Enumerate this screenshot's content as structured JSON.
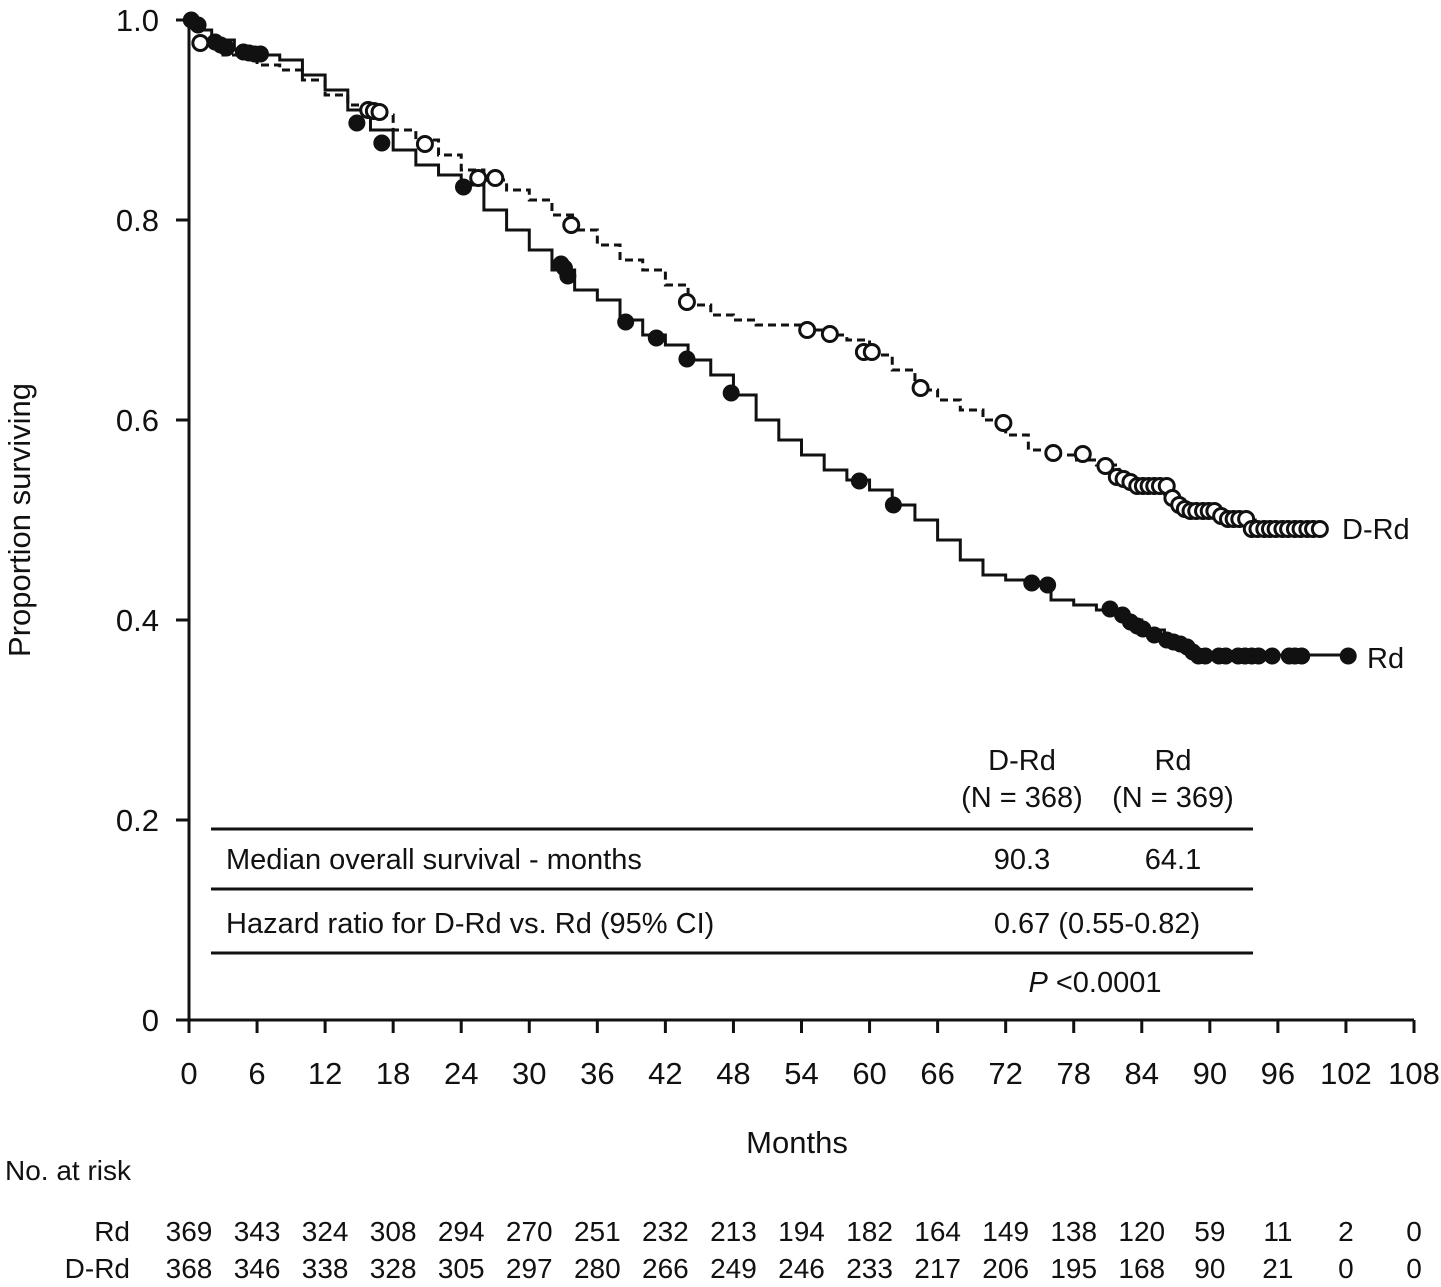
{
  "chart_data": {
    "type": "line",
    "subtype": "kaplan-meier",
    "xlabel": "Months",
    "ylabel": "Proportion surviving",
    "xlim": [
      0,
      108
    ],
    "ylim": [
      0,
      1.0
    ],
    "x_ticks": [
      0,
      6,
      12,
      18,
      24,
      30,
      36,
      42,
      48,
      54,
      60,
      66,
      72,
      78,
      84,
      90,
      96,
      102,
      108
    ],
    "y_ticks": [
      {
        "value": 0,
        "label": "0"
      },
      {
        "value": 0.2,
        "label": "0.2"
      },
      {
        "value": 0.4,
        "label": "0.4"
      },
      {
        "value": 0.6,
        "label": "0.6"
      },
      {
        "value": 0.8,
        "label": "0.8"
      },
      {
        "value": 1.0,
        "label": "1.0"
      }
    ],
    "grid": false,
    "series": [
      {
        "name": "Rd",
        "line_style": "solid",
        "marker": "filled-circle",
        "color": "#111111",
        "steps": [
          [
            0,
            1.0
          ],
          [
            1,
            0.99
          ],
          [
            2,
            0.98
          ],
          [
            4,
            0.97
          ],
          [
            6,
            0.965
          ],
          [
            8,
            0.96
          ],
          [
            10,
            0.945
          ],
          [
            12,
            0.93
          ],
          [
            14,
            0.91
          ],
          [
            16,
            0.89
          ],
          [
            18,
            0.87
          ],
          [
            20,
            0.855
          ],
          [
            22,
            0.845
          ],
          [
            24,
            0.835
          ],
          [
            26,
            0.81
          ],
          [
            28,
            0.79
          ],
          [
            30,
            0.77
          ],
          [
            32,
            0.75
          ],
          [
            34,
            0.73
          ],
          [
            36,
            0.72
          ],
          [
            38,
            0.7
          ],
          [
            40,
            0.685
          ],
          [
            42,
            0.675
          ],
          [
            44,
            0.66
          ],
          [
            46,
            0.645
          ],
          [
            48,
            0.625
          ],
          [
            50,
            0.6
          ],
          [
            52,
            0.58
          ],
          [
            54,
            0.565
          ],
          [
            56,
            0.55
          ],
          [
            58,
            0.54
          ],
          [
            60,
            0.53
          ],
          [
            62,
            0.515
          ],
          [
            64,
            0.5
          ],
          [
            66,
            0.48
          ],
          [
            68,
            0.46
          ],
          [
            70,
            0.445
          ],
          [
            72,
            0.44
          ],
          [
            74,
            0.435
          ],
          [
            76,
            0.42
          ],
          [
            78,
            0.415
          ],
          [
            80,
            0.41
          ],
          [
            82,
            0.4
          ],
          [
            84,
            0.39
          ],
          [
            86,
            0.375
          ],
          [
            88,
            0.365
          ],
          [
            102,
            0.365
          ]
        ],
        "censored": [
          [
            0.2,
            1.0
          ],
          [
            0.8,
            0.995
          ],
          [
            2.3,
            0.978
          ],
          [
            2.8,
            0.975
          ],
          [
            3.3,
            0.972
          ],
          [
            4.8,
            0.968
          ],
          [
            5.3,
            0.967
          ],
          [
            5.8,
            0.966
          ],
          [
            6.3,
            0.966
          ],
          [
            14.8,
            0.897
          ],
          [
            17.0,
            0.877
          ],
          [
            24.2,
            0.833
          ],
          [
            32.8,
            0.756
          ],
          [
            33.1,
            0.752
          ],
          [
            33.4,
            0.744
          ],
          [
            38.5,
            0.698
          ],
          [
            41.2,
            0.682
          ],
          [
            43.9,
            0.661
          ],
          [
            47.8,
            0.627
          ],
          [
            59.1,
            0.539
          ],
          [
            62.1,
            0.515
          ],
          [
            74.3,
            0.437
          ],
          [
            75.7,
            0.435
          ],
          [
            81.2,
            0.411
          ],
          [
            82.3,
            0.405
          ],
          [
            83.0,
            0.398
          ],
          [
            83.6,
            0.394
          ],
          [
            84.1,
            0.391
          ],
          [
            85.1,
            0.385
          ],
          [
            86.2,
            0.38
          ],
          [
            86.8,
            0.378
          ],
          [
            87.4,
            0.376
          ],
          [
            88.0,
            0.373
          ],
          [
            88.5,
            0.368
          ],
          [
            89.0,
            0.364
          ],
          [
            89.6,
            0.364
          ],
          [
            90.8,
            0.364
          ],
          [
            91.4,
            0.364
          ],
          [
            92.5,
            0.364
          ],
          [
            93.1,
            0.364
          ],
          [
            93.7,
            0.364
          ],
          [
            94.3,
            0.364
          ],
          [
            95.5,
            0.364
          ],
          [
            97.0,
            0.364
          ],
          [
            97.5,
            0.364
          ],
          [
            98.1,
            0.364
          ],
          [
            102.2,
            0.364
          ]
        ]
      },
      {
        "name": "D-Rd",
        "line_style": "dashed",
        "marker": "open-circle",
        "color": "#111111",
        "steps": [
          [
            0,
            1.0
          ],
          [
            1,
            0.975
          ],
          [
            3,
            0.965
          ],
          [
            6,
            0.955
          ],
          [
            8,
            0.95
          ],
          [
            10,
            0.94
          ],
          [
            12,
            0.925
          ],
          [
            14,
            0.915
          ],
          [
            16,
            0.905
          ],
          [
            18,
            0.89
          ],
          [
            20,
            0.88
          ],
          [
            22,
            0.865
          ],
          [
            24,
            0.85
          ],
          [
            26,
            0.84
          ],
          [
            28,
            0.83
          ],
          [
            30,
            0.82
          ],
          [
            32,
            0.805
          ],
          [
            34,
            0.79
          ],
          [
            36,
            0.775
          ],
          [
            38,
            0.76
          ],
          [
            40,
            0.75
          ],
          [
            42,
            0.735
          ],
          [
            44,
            0.715
          ],
          [
            46,
            0.705
          ],
          [
            48,
            0.7
          ],
          [
            50,
            0.695
          ],
          [
            54,
            0.69
          ],
          [
            56,
            0.685
          ],
          [
            58,
            0.68
          ],
          [
            60,
            0.665
          ],
          [
            62,
            0.65
          ],
          [
            64,
            0.63
          ],
          [
            66,
            0.62
          ],
          [
            68,
            0.61
          ],
          [
            70,
            0.6
          ],
          [
            72,
            0.585
          ],
          [
            74,
            0.57
          ],
          [
            76,
            0.565
          ],
          [
            78,
            0.56
          ],
          [
            80,
            0.555
          ],
          [
            82,
            0.54
          ],
          [
            84,
            0.53
          ],
          [
            86,
            0.52
          ],
          [
            88,
            0.51
          ],
          [
            90,
            0.505
          ],
          [
            92,
            0.5
          ],
          [
            94,
            0.49
          ],
          [
            100,
            0.49
          ]
        ],
        "censored": [
          [
            1.0,
            0.977
          ],
          [
            15.8,
            0.91
          ],
          [
            16.3,
            0.909
          ],
          [
            16.8,
            0.908
          ],
          [
            20.8,
            0.876
          ],
          [
            25.5,
            0.842
          ],
          [
            27.0,
            0.842
          ],
          [
            33.7,
            0.795
          ],
          [
            43.9,
            0.718
          ],
          [
            54.5,
            0.69
          ],
          [
            56.5,
            0.686
          ],
          [
            59.5,
            0.668
          ],
          [
            60.2,
            0.668
          ],
          [
            64.5,
            0.632
          ],
          [
            71.8,
            0.597
          ],
          [
            76.2,
            0.567
          ],
          [
            78.8,
            0.566
          ],
          [
            80.8,
            0.554
          ],
          [
            81.8,
            0.543
          ],
          [
            82.4,
            0.541
          ],
          [
            83.0,
            0.538
          ],
          [
            83.6,
            0.534
          ],
          [
            84.1,
            0.534
          ],
          [
            84.6,
            0.534
          ],
          [
            85.1,
            0.534
          ],
          [
            85.6,
            0.534
          ],
          [
            86.2,
            0.534
          ],
          [
            86.7,
            0.522
          ],
          [
            87.3,
            0.515
          ],
          [
            87.8,
            0.511
          ],
          [
            88.3,
            0.509
          ],
          [
            88.8,
            0.509
          ],
          [
            89.4,
            0.509
          ],
          [
            89.9,
            0.509
          ],
          [
            90.4,
            0.509
          ],
          [
            91.0,
            0.504
          ],
          [
            91.6,
            0.501
          ],
          [
            92.1,
            0.501
          ],
          [
            92.6,
            0.501
          ],
          [
            93.2,
            0.501
          ],
          [
            93.7,
            0.491
          ],
          [
            94.2,
            0.491
          ],
          [
            94.8,
            0.491
          ],
          [
            95.3,
            0.491
          ],
          [
            95.8,
            0.491
          ],
          [
            96.4,
            0.491
          ],
          [
            96.9,
            0.491
          ],
          [
            97.5,
            0.491
          ],
          [
            98.0,
            0.491
          ],
          [
            98.6,
            0.491
          ],
          [
            99.1,
            0.491
          ],
          [
            99.7,
            0.491
          ]
        ]
      }
    ],
    "summary_table": {
      "col1_header": [
        "D-Rd",
        "(N = 368)"
      ],
      "col2_header": [
        "Rd",
        "(N = 369)"
      ],
      "row1_label": "Median overall survival - months",
      "row1_val1": "90.3",
      "row1_val2": "64.1",
      "row2_label": "Hazard ratio for D-Rd vs. Rd (95% CI)",
      "row2_val": "0.67 (0.55-0.82)",
      "p_italic": "P",
      "p_value": " <0.0001"
    },
    "risk_table": {
      "title": "No. at risk",
      "rows": [
        {
          "label": "Rd",
          "values": [
            "369",
            "343",
            "324",
            "308",
            "294",
            "270",
            "251",
            "232",
            "213",
            "194",
            "182",
            "164",
            "149",
            "138",
            "120",
            "59",
            "11",
            "2",
            "0"
          ]
        },
        {
          "label": "D-Rd",
          "values": [
            "368",
            "346",
            "338",
            "328",
            "305",
            "297",
            "280",
            "266",
            "249",
            "246",
            "233",
            "217",
            "206",
            "195",
            "168",
            "90",
            "21",
            "0",
            "0"
          ]
        }
      ]
    }
  }
}
